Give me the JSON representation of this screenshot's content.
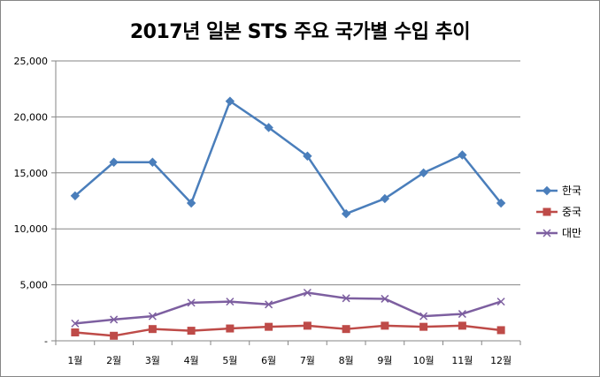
{
  "chart_data": {
    "type": "line",
    "title": "2017년 일본 STS 주요 국가별 수입 추이",
    "xlabel": "",
    "ylabel": "",
    "categories": [
      "1월",
      "2월",
      "3월",
      "4월",
      "5월",
      "6월",
      "7월",
      "8월",
      "9월",
      "10월",
      "11월",
      "12월"
    ],
    "ylim": [
      0,
      25000
    ],
    "yticks": [
      0,
      5000,
      10000,
      15000,
      20000,
      25000
    ],
    "ytick_labels": [
      "-",
      "5,000",
      "10,000",
      "15,000",
      "20,000",
      "25,000"
    ],
    "grid": true,
    "legend_position": "right",
    "series": [
      {
        "name": "한국",
        "color": "#4A7EBB",
        "marker": "diamond",
        "values": [
          12950,
          15950,
          15950,
          12300,
          21400,
          19050,
          16500,
          11350,
          12700,
          15000,
          16600,
          12300
        ]
      },
      {
        "name": "중국",
        "color": "#BE4B48",
        "marker": "square",
        "values": [
          750,
          450,
          1050,
          900,
          1100,
          1250,
          1350,
          1050,
          1350,
          1250,
          1350,
          950
        ]
      },
      {
        "name": "대만",
        "color": "#7D5FA0",
        "marker": "x",
        "values": [
          1550,
          1900,
          2200,
          3400,
          3500,
          3250,
          4300,
          3800,
          3750,
          2200,
          2400,
          3500
        ]
      }
    ]
  }
}
